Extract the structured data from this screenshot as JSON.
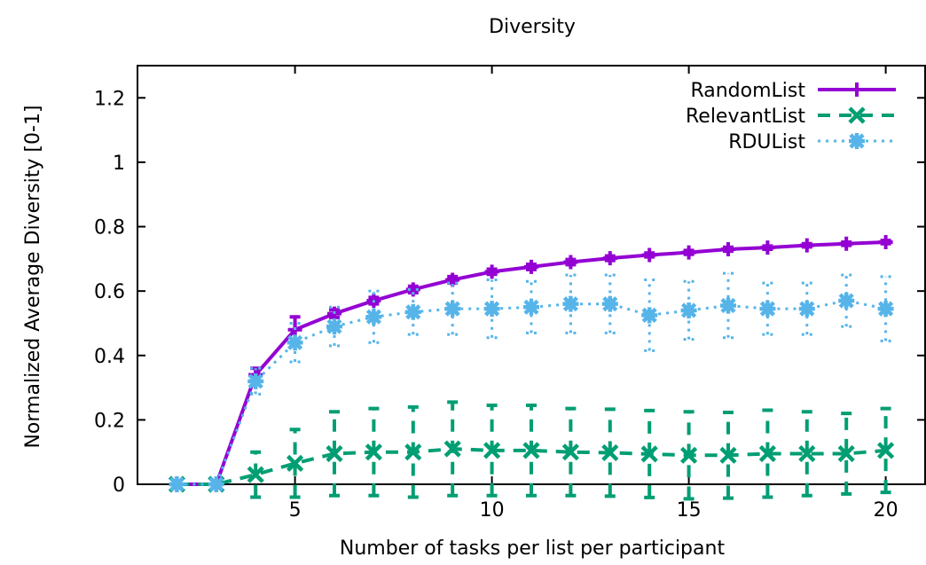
{
  "chart_data": {
    "type": "line",
    "title": "Diversity",
    "xlabel": "Number of tasks per list per participant",
    "ylabel": "Normalized Average Diversity [0-1]",
    "xlim": [
      1,
      21
    ],
    "ylim": [
      0,
      1.3
    ],
    "x_ticks": [
      5,
      10,
      15,
      20
    ],
    "y_ticks": [
      0,
      0.2,
      0.4,
      0.6,
      0.8,
      1,
      1.2
    ],
    "grid": false,
    "legend_position": "top-right",
    "x": [
      2,
      3,
      4,
      5,
      6,
      7,
      8,
      9,
      10,
      11,
      12,
      13,
      14,
      15,
      16,
      17,
      18,
      19,
      20
    ],
    "series": [
      {
        "name": "RandomList",
        "color": "#9400d3",
        "line_style": "solid",
        "marker": "plus",
        "values": [
          0,
          0,
          0.34,
          0.48,
          0.53,
          0.57,
          0.605,
          0.635,
          0.66,
          0.675,
          0.69,
          0.702,
          0.712,
          0.72,
          0.73,
          0.735,
          0.742,
          0.747,
          0.752
        ],
        "err": [
          0,
          0,
          0.02,
          0.04,
          0.012,
          0.01,
          0.01,
          0.01,
          0.008,
          0.008,
          0.008,
          0.007,
          0.006,
          0.006,
          0.006,
          0.005,
          0.005,
          0.005,
          0.005
        ]
      },
      {
        "name": "RelevantList",
        "color": "#009e73",
        "line_style": "dashed",
        "marker": "x",
        "values": [
          0,
          0,
          0.03,
          0.065,
          0.095,
          0.1,
          0.1,
          0.11,
          0.105,
          0.105,
          0.1,
          0.098,
          0.094,
          0.09,
          0.09,
          0.095,
          0.095,
          0.095,
          0.105
        ],
        "err": [
          0,
          0,
          0.07,
          0.105,
          0.13,
          0.135,
          0.14,
          0.145,
          0.14,
          0.14,
          0.135,
          0.135,
          0.135,
          0.135,
          0.133,
          0.135,
          0.13,
          0.125,
          0.13
        ]
      },
      {
        "name": "RDUList",
        "color": "#56b4e9",
        "line_style": "dotted",
        "marker": "star",
        "values": [
          0,
          0,
          0.32,
          0.44,
          0.49,
          0.52,
          0.535,
          0.545,
          0.545,
          0.55,
          0.56,
          0.56,
          0.525,
          0.54,
          0.555,
          0.545,
          0.545,
          0.57,
          0.545
        ],
        "err": [
          0,
          0,
          0.04,
          0.06,
          0.06,
          0.08,
          0.07,
          0.08,
          0.09,
          0.08,
          0.09,
          0.09,
          0.11,
          0.09,
          0.1,
          0.08,
          0.08,
          0.08,
          0.1
        ]
      }
    ]
  }
}
